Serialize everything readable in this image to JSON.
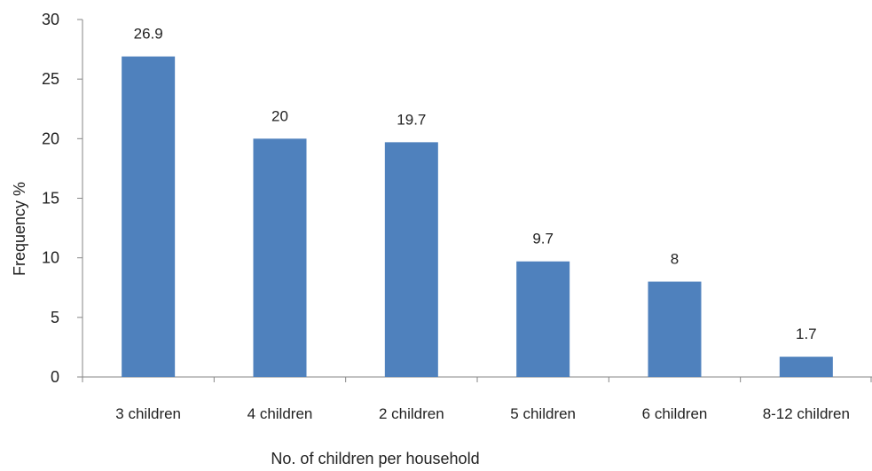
{
  "chart_data": {
    "type": "bar",
    "categories": [
      "3 children",
      "4 children",
      "2 children",
      "5 children",
      "6 children",
      "8-12 children"
    ],
    "values": [
      26.9,
      20,
      19.7,
      9.7,
      8,
      1.7
    ],
    "data_labels": [
      "26.9",
      "20",
      "19.7",
      "9.7",
      "8",
      "1.7"
    ],
    "xlabel": "No. of children per household",
    "ylabel": "Frequency %",
    "ylim": [
      0,
      30
    ],
    "yticks": [
      0,
      5,
      10,
      15,
      20,
      25,
      30
    ],
    "grid": false,
    "legend": "none",
    "bar_color": "#4f81bd"
  }
}
